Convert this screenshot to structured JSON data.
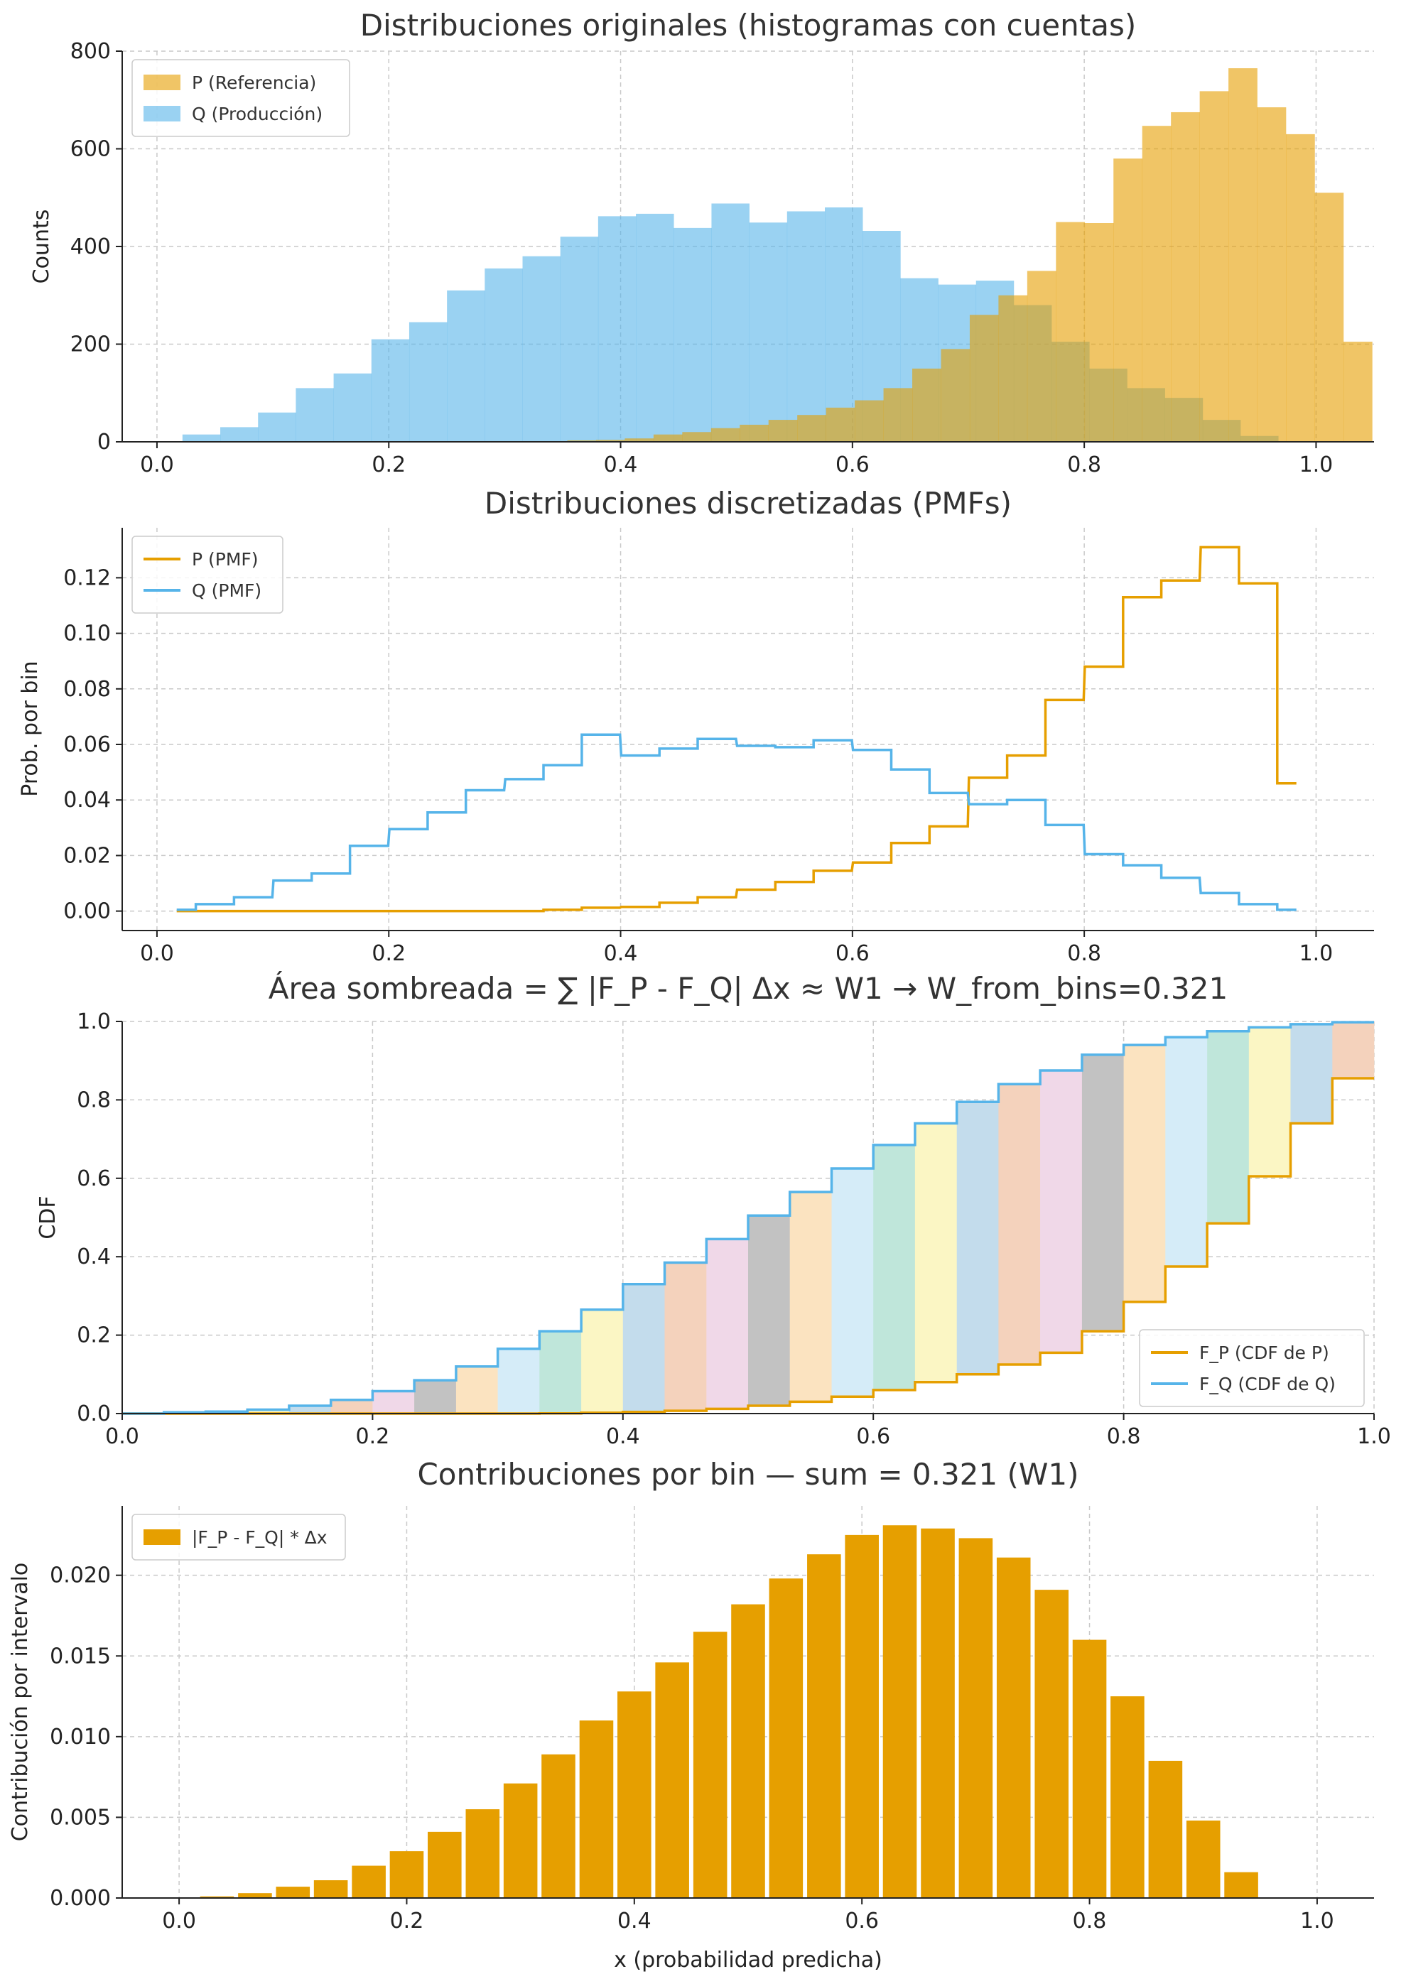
{
  "chart_data": [
    {
      "type": "bar",
      "title": "Distribuciones originales (histogramas con cuentas)",
      "xlabel": "",
      "ylabel": "Counts",
      "xlim": [
        -0.03,
        1.05
      ],
      "ylim": [
        0,
        800
      ],
      "xticks": [
        "0.0",
        "0.2",
        "0.4",
        "0.6",
        "0.8",
        "1.0"
      ],
      "yticks": [
        "0",
        "200",
        "400",
        "600",
        "800"
      ],
      "grid": true,
      "legend_position": "top-left",
      "series": [
        {
          "name": "Q (Producción)",
          "color": "#56b4e9",
          "alpha": 0.6,
          "bin_start": 0.022,
          "bin_width": 0.0326,
          "values": [
            15,
            30,
            60,
            110,
            140,
            210,
            245,
            310,
            355,
            380,
            420,
            462,
            467,
            438,
            488,
            449,
            472,
            480,
            432,
            335,
            322,
            330,
            280,
            205,
            150,
            110,
            90,
            45,
            12
          ]
        },
        {
          "name": "P (Referencia)",
          "color": "#e69f00",
          "alpha": 0.6,
          "bin_start": 0.354,
          "bin_width": 0.0248,
          "values": [
            3,
            4,
            7,
            15,
            20,
            28,
            35,
            45,
            55,
            70,
            85,
            110,
            150,
            190,
            260,
            300,
            350,
            450,
            448,
            580,
            647,
            675,
            718,
            765,
            685,
            630,
            510,
            205
          ]
        }
      ]
    },
    {
      "type": "line",
      "title": "Distribuciones discretizadas (PMFs)",
      "xlabel": "",
      "ylabel": "Prob. por bin",
      "xlim": [
        -0.03,
        1.05
      ],
      "ylim": [
        -0.007,
        0.138
      ],
      "xticks": [
        "0.0",
        "0.2",
        "0.4",
        "0.6",
        "0.8",
        "1.0"
      ],
      "yticks": [
        "0.00",
        "0.02",
        "0.04",
        "0.06",
        "0.08",
        "0.10",
        "0.12"
      ],
      "grid": true,
      "legend_position": "top-left",
      "x": [
        0.017,
        0.05,
        0.083,
        0.117,
        0.15,
        0.183,
        0.217,
        0.25,
        0.283,
        0.317,
        0.35,
        0.383,
        0.417,
        0.45,
        0.483,
        0.517,
        0.55,
        0.583,
        0.617,
        0.65,
        0.683,
        0.717,
        0.75,
        0.783,
        0.817,
        0.85,
        0.883,
        0.917,
        0.95,
        0.983
      ],
      "series": [
        {
          "name": "P (PMF)",
          "color": "#e69f00",
          "values": [
            0.0,
            0.0,
            0.0,
            0.0,
            0.0,
            0.0,
            0.0,
            0.0,
            0.0,
            0.0,
            0.0005,
            0.0012,
            0.0015,
            0.003,
            0.005,
            0.0077,
            0.0105,
            0.0145,
            0.0175,
            0.0245,
            0.0305,
            0.048,
            0.056,
            0.076,
            0.088,
            0.113,
            0.119,
            0.131,
            0.118,
            0.046
          ]
        },
        {
          "name": "Q (PMF)",
          "color": "#56b4e9",
          "values": [
            0.0005,
            0.0025,
            0.005,
            0.011,
            0.0135,
            0.0235,
            0.0295,
            0.0355,
            0.0435,
            0.0475,
            0.0525,
            0.0635,
            0.056,
            0.0585,
            0.062,
            0.0595,
            0.059,
            0.0615,
            0.058,
            0.051,
            0.0425,
            0.0385,
            0.04,
            0.031,
            0.0205,
            0.0165,
            0.012,
            0.0065,
            0.0025,
            0.0005
          ]
        }
      ]
    },
    {
      "type": "line",
      "title": "Área sombreada = ∑ |F_P - F_Q| Δx  ≈  W1  →  W_from_bins=0.321",
      "xlabel": "",
      "ylabel": "CDF",
      "xlim": [
        0.0,
        1.0
      ],
      "ylim": [
        0.0,
        1.0
      ],
      "xticks": [
        "0.0",
        "0.2",
        "0.4",
        "0.6",
        "0.8",
        "1.0"
      ],
      "yticks": [
        "0.0",
        "0.2",
        "0.4",
        "0.6",
        "0.8",
        "1.0"
      ],
      "grid": true,
      "legend_position": "bottom-right",
      "shading": true,
      "shade_colors": [
        "#fbe3c0",
        "#d5ecf8",
        "#bfe6da",
        "#fbf6c4",
        "#c3dcec",
        "#f4d2bc",
        "#f0d8e8",
        "#c2c2c2"
      ],
      "x_edges": [
        0.0,
        0.0333,
        0.0667,
        0.1,
        0.1333,
        0.1667,
        0.2,
        0.2333,
        0.2667,
        0.3,
        0.3333,
        0.3667,
        0.4,
        0.4333,
        0.4667,
        0.5,
        0.5333,
        0.5667,
        0.6,
        0.6333,
        0.6667,
        0.7,
        0.7333,
        0.7667,
        0.8,
        0.8333,
        0.8667,
        0.9,
        0.9333,
        0.9667,
        1.0
      ],
      "series": [
        {
          "name": "F_P (CDF de P)",
          "color": "#e69f00",
          "values": [
            0.0,
            0.0,
            0.0,
            0.0,
            0.0,
            0.0,
            0.0,
            0.0,
            0.0,
            0.0,
            0.0005,
            0.002,
            0.004,
            0.007,
            0.012,
            0.02,
            0.03,
            0.043,
            0.06,
            0.08,
            0.1,
            0.125,
            0.155,
            0.21,
            0.285,
            0.375,
            0.485,
            0.605,
            0.74,
            0.855,
            0.955
          ]
        },
        {
          "name": "F_Q (CDF de Q)",
          "color": "#56b4e9",
          "values": [
            0.0,
            0.003,
            0.005,
            0.01,
            0.02,
            0.035,
            0.057,
            0.085,
            0.12,
            0.165,
            0.21,
            0.265,
            0.33,
            0.385,
            0.445,
            0.505,
            0.565,
            0.625,
            0.685,
            0.74,
            0.795,
            0.84,
            0.875,
            0.915,
            0.94,
            0.96,
            0.975,
            0.985,
            0.993,
            0.998,
            1.0
          ]
        }
      ]
    },
    {
      "type": "bar",
      "title": "Contribuciones por bin — sum = 0.321 (W1)",
      "xlabel": "x (probabilidad predicha)",
      "ylabel": "Contribución por intervalo",
      "xlim": [
        -0.05,
        1.05
      ],
      "ylim": [
        0,
        0.0243
      ],
      "xticks": [
        "0.0",
        "0.2",
        "0.4",
        "0.6",
        "0.8",
        "1.0"
      ],
      "yticks": [
        "0.000",
        "0.005",
        "0.010",
        "0.015",
        "0.020"
      ],
      "grid": true,
      "legend_position": "top-left",
      "bar_width": 0.0297,
      "series": [
        {
          "name": "|F_P - F_Q| * Δx",
          "color": "#e69f00",
          "x": [
            0.0,
            0.0333,
            0.0667,
            0.1,
            0.1333,
            0.1667,
            0.2,
            0.2333,
            0.2667,
            0.3,
            0.3333,
            0.3667,
            0.4,
            0.4333,
            0.4667,
            0.5,
            0.5333,
            0.5667,
            0.6,
            0.6333,
            0.6667,
            0.7,
            0.7333,
            0.7667,
            0.8,
            0.8333,
            0.8667,
            0.9,
            0.9333,
            0.9667
          ],
          "values": [
            0.0,
            0.0001,
            0.0003,
            0.0007,
            0.0011,
            0.002,
            0.0029,
            0.0041,
            0.0055,
            0.0071,
            0.0089,
            0.011,
            0.0128,
            0.0146,
            0.0165,
            0.0182,
            0.0198,
            0.0213,
            0.0225,
            0.0231,
            0.0229,
            0.0223,
            0.0211,
            0.0191,
            0.016,
            0.0125,
            0.0085,
            0.0048,
            0.0016,
            0.0
          ]
        }
      ]
    }
  ]
}
